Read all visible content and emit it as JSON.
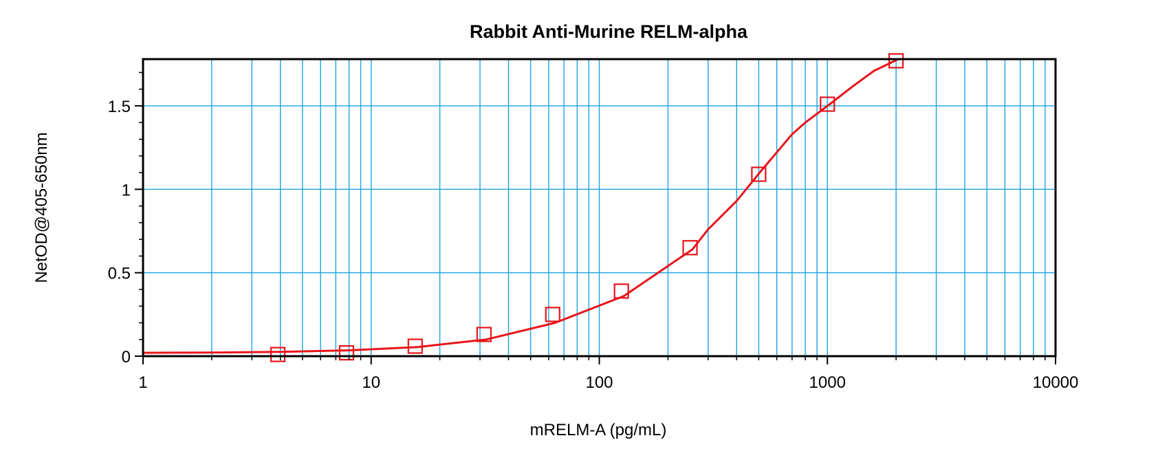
{
  "chart_data": {
    "type": "scatter",
    "title": "Rabbit Anti-Murine RELM-alpha",
    "xlabel": "mRELM-A (pg/mL)",
    "ylabel": "NetOD@405-650nm",
    "x_scale": "log",
    "xlim": [
      1,
      10000
    ],
    "ylim": [
      0,
      1.78
    ],
    "x_ticks": [
      1,
      10,
      100,
      1000,
      10000
    ],
    "x_tick_labels": [
      "1",
      "10",
      "100",
      "1000",
      "10000"
    ],
    "y_ticks": [
      0,
      0.5,
      1,
      1.5
    ],
    "y_tick_labels": [
      "0",
      "0.5",
      "1",
      "1.5"
    ],
    "grid": true,
    "series": [
      {
        "marker": "open-square",
        "color": "#e8141b",
        "x": [
          3.9,
          7.8,
          15.6,
          31.25,
          62.5,
          125,
          250,
          500,
          1000,
          2000
        ],
        "y": [
          0.01,
          0.02,
          0.06,
          0.13,
          0.25,
          0.39,
          0.65,
          1.09,
          1.51,
          1.77
        ]
      }
    ],
    "fit_curve": {
      "color": "#e8141b",
      "x": [
        1,
        2,
        4,
        8,
        16,
        32,
        64,
        128,
        256,
        300,
        400,
        512,
        700,
        800,
        1024,
        1300,
        1600,
        2048
      ],
      "y": [
        0.02,
        0.022,
        0.026,
        0.035,
        0.055,
        0.1,
        0.2,
        0.36,
        0.64,
        0.76,
        0.93,
        1.11,
        1.33,
        1.4,
        1.51,
        1.62,
        1.71,
        1.78
      ]
    }
  },
  "colors": {
    "grid": "#1aa3e0",
    "frame": "#000000",
    "series": "#e8141b"
  }
}
